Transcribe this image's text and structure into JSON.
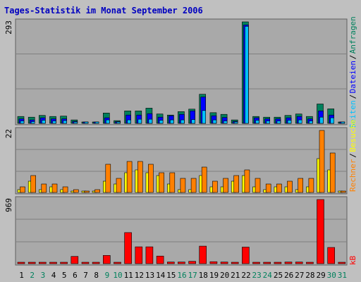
{
  "title": "Tages-Statistik im Monat September 2006",
  "colors": {
    "background": "#c0c0c0",
    "panel": "#a9a9a9",
    "grid": "#808080",
    "title": "#0000c0",
    "anfragen": "#00805c",
    "dateien": "#0000ff",
    "seiten": "#00c0ff",
    "besuche": "#ffff00",
    "rechner": "#ff8000",
    "kb": "#ff0000",
    "weekday": "#000000",
    "weekend": "#00805c"
  },
  "chart_data": [
    {
      "type": "bar",
      "panel": "top",
      "ytick_label": "293",
      "categories": [
        "1",
        "2",
        "3",
        "4",
        "5",
        "6",
        "7",
        "8",
        "9",
        "10",
        "11",
        "12",
        "13",
        "14",
        "15",
        "16",
        "17",
        "18",
        "19",
        "20",
        "21",
        "22",
        "23",
        "24",
        "25",
        "26",
        "27",
        "28",
        "29",
        "30",
        "31"
      ],
      "weekend": [
        false,
        true,
        true,
        false,
        false,
        false,
        false,
        false,
        true,
        true,
        false,
        false,
        false,
        false,
        false,
        true,
        true,
        false,
        false,
        false,
        false,
        false,
        true,
        true,
        false,
        false,
        false,
        false,
        false,
        true,
        true
      ],
      "ymax": 293,
      "series": [
        {
          "name": "Anfragen",
          "color_key": "anfragen",
          "values": [
            20,
            18,
            23,
            20,
            21,
            10,
            0,
            3,
            30,
            8,
            36,
            36,
            44,
            27,
            24,
            34,
            41,
            84,
            31,
            26,
            10,
            293,
            20,
            18,
            18,
            23,
            27,
            20,
            56,
            42,
            0
          ]
        },
        {
          "name": "Dateien",
          "color_key": "dateien",
          "values": [
            13,
            10,
            16,
            13,
            13,
            6,
            0,
            2,
            16,
            5,
            24,
            24,
            28,
            18,
            22,
            26,
            36,
            76,
            22,
            17,
            6,
            284,
            16,
            13,
            13,
            16,
            20,
            13,
            36,
            24,
            0
          ]
        },
        {
          "name": "Seiten",
          "color_key": "seiten",
          "values": [
            7,
            5,
            9,
            7,
            8,
            3,
            0,
            1,
            10,
            3,
            10,
            12,
            12,
            9,
            10,
            10,
            11,
            37,
            10,
            7,
            4,
            280,
            9,
            7,
            7,
            9,
            10,
            7,
            18,
            16,
            0
          ]
        }
      ]
    },
    {
      "type": "bar",
      "panel": "middle",
      "ytick_label": "22",
      "categories": [
        "1",
        "2",
        "3",
        "4",
        "5",
        "6",
        "7",
        "8",
        "9",
        "10",
        "11",
        "12",
        "13",
        "14",
        "15",
        "16",
        "17",
        "18",
        "19",
        "20",
        "21",
        "22",
        "23",
        "24",
        "25",
        "26",
        "27",
        "28",
        "29",
        "30",
        "31"
      ],
      "ymax": 22,
      "series": [
        {
          "name": "Besuche",
          "color_key": "besuche",
          "values": [
            1,
            4,
            1,
            2,
            1,
            0,
            0,
            0,
            4,
            3,
            7,
            8,
            7,
            6,
            3,
            1,
            1,
            6,
            2,
            2,
            4,
            6,
            2,
            1,
            2,
            2,
            1,
            2,
            12,
            8,
            0
          ]
        },
        {
          "name": "Rechner",
          "color_key": "rechner",
          "values": [
            2,
            6,
            3,
            3,
            2,
            1,
            0,
            1,
            10,
            5,
            11,
            11,
            10,
            7,
            7,
            5,
            5,
            9,
            4,
            5,
            6,
            8,
            5,
            3,
            3,
            4,
            5,
            5,
            22,
            14,
            0
          ]
        }
      ]
    },
    {
      "type": "bar",
      "panel": "bottom",
      "ytick_label": "969",
      "categories": [
        "1",
        "2",
        "3",
        "4",
        "5",
        "6",
        "7",
        "8",
        "9",
        "10",
        "11",
        "12",
        "13",
        "14",
        "15",
        "16",
        "17",
        "18",
        "19",
        "20",
        "21",
        "22",
        "23",
        "24",
        "25",
        "26",
        "27",
        "28",
        "29",
        "30",
        "31"
      ],
      "ymax": 969,
      "series": [
        {
          "name": "kB",
          "color_key": "kb",
          "values": [
            10,
            10,
            15,
            15,
            15,
            110,
            0,
            10,
            125,
            20,
            470,
            255,
            255,
            115,
            25,
            25,
            35,
            265,
            30,
            25,
            15,
            250,
            20,
            15,
            15,
            25,
            25,
            20,
            969,
            245,
            0
          ]
        }
      ]
    }
  ],
  "axis_labels": {
    "top_right": [
      "Anfragen",
      "Dateien",
      "Seiten"
    ],
    "middle_right": [
      "Besuche",
      "Rechner"
    ],
    "bottom_right": [
      "kB"
    ]
  }
}
